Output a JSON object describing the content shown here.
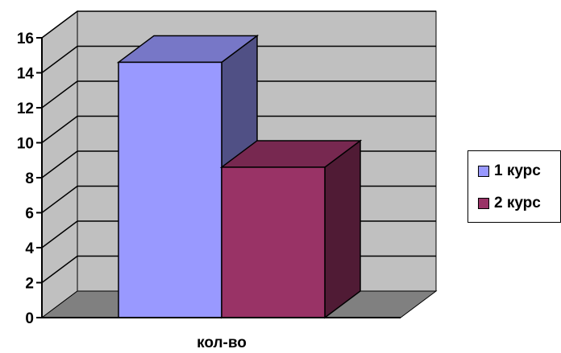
{
  "chart_data": {
    "type": "bar",
    "style": "3d-clustered-column",
    "categories": [
      "кол-во"
    ],
    "series": [
      {
        "name": "1 курс",
        "values": [
          14.6
        ],
        "color": "#9999ff"
      },
      {
        "name": "2 курс",
        "values": [
          8.6
        ],
        "color": "#993366"
      }
    ],
    "yticks": [
      "0",
      "2",
      "4",
      "6",
      "8",
      "10",
      "12",
      "14",
      "16"
    ],
    "ylim": [
      0,
      16
    ],
    "grid": true,
    "legend": "right",
    "wall_color": "#c0c0c0",
    "floor_color": "#808080"
  }
}
